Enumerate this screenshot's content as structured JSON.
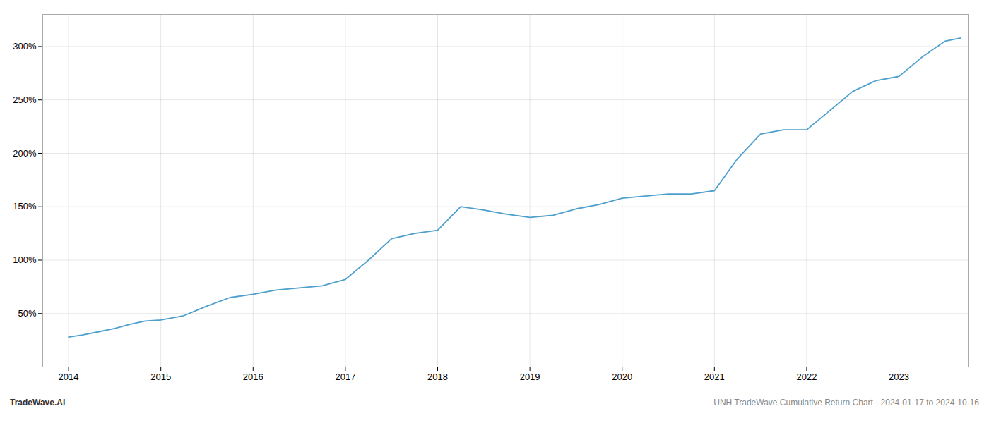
{
  "chart_data": {
    "type": "line",
    "x": [
      2014.0,
      2014.15,
      2014.33,
      2014.5,
      2014.67,
      2014.83,
      2015.0,
      2015.25,
      2015.5,
      2015.75,
      2016.0,
      2016.25,
      2016.5,
      2016.75,
      2017.0,
      2017.25,
      2017.5,
      2017.75,
      2018.0,
      2018.25,
      2018.5,
      2018.75,
      2019.0,
      2019.25,
      2019.5,
      2019.75,
      2020.0,
      2020.25,
      2020.5,
      2020.75,
      2021.0,
      2021.25,
      2021.5,
      2021.75,
      2022.0,
      2022.25,
      2022.5,
      2022.75,
      2023.0,
      2023.25,
      2023.5,
      2023.67
    ],
    "values": [
      28,
      30,
      33,
      36,
      40,
      43,
      44,
      48,
      57,
      65,
      68,
      72,
      74,
      76,
      82,
      100,
      120,
      125,
      128,
      150,
      147,
      143,
      140,
      142,
      148,
      152,
      158,
      160,
      162,
      162,
      165,
      195,
      218,
      222,
      222,
      240,
      258,
      268,
      272,
      290,
      305,
      308
    ],
    "color": "#4d9fcc",
    "xlim": [
      2013.72,
      2023.75
    ],
    "xticks": [
      2014,
      2015,
      2016,
      2017,
      2018,
      2019,
      2020,
      2021,
      2022,
      2023
    ],
    "ylim": [
      0,
      330
    ],
    "yticks": [
      {
        "value": 50,
        "label": "50%"
      },
      {
        "value": 100,
        "label": "100%"
      },
      {
        "value": 150,
        "label": "150%"
      },
      {
        "value": 200,
        "label": "200%"
      },
      {
        "value": 250,
        "label": "250%"
      },
      {
        "value": 300,
        "label": "300%"
      }
    ],
    "grid": true,
    "annotations": [
      "TradeWave.AI",
      "UNH TradeWave Cumulative Return Chart - 2024-01-17 to 2024-10-16"
    ]
  }
}
